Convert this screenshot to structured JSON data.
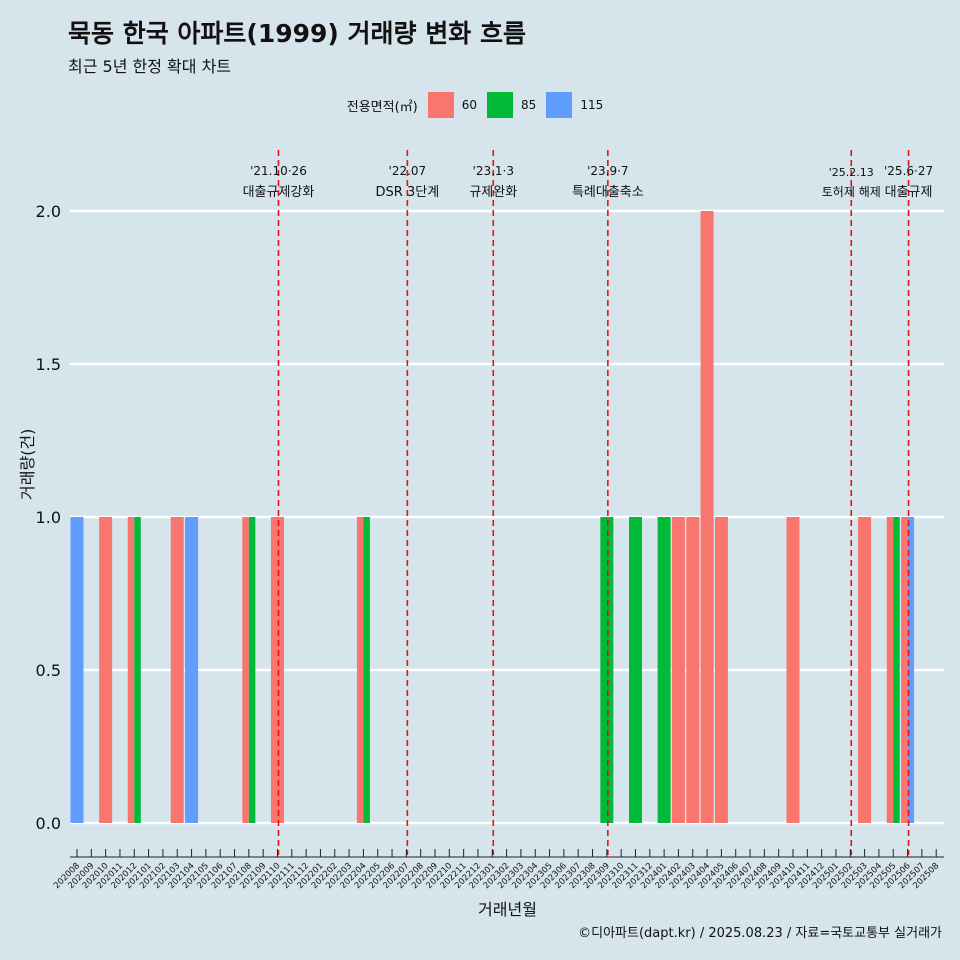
{
  "title": "묵동 한국 아파트(1999) 거래량 변화 흐름",
  "subtitle": "최근 5년 한정 확대 차트",
  "caption": "©디아파트(dapt.kr) / 2025.08.23 / 자료=국토교통부 실거래가",
  "legend": {
    "title": "전용면적(㎡)",
    "items": [
      {
        "label": "60",
        "color": "#f8766d"
      },
      {
        "label": "85",
        "color": "#00ba38"
      },
      {
        "label": "115",
        "color": "#619cff"
      }
    ]
  },
  "chart_data": {
    "type": "bar",
    "xlabel": "거래년월",
    "ylabel": "거래량(건)",
    "ylim": [
      0,
      2
    ],
    "yticks": [
      "0.0",
      "0.5",
      "1.0",
      "1.5",
      "2.0"
    ],
    "categories": [
      "202008",
      "202009",
      "202010",
      "202011",
      "202012",
      "202101",
      "202102",
      "202103",
      "202104",
      "202105",
      "202106",
      "202107",
      "202108",
      "202109",
      "202110",
      "202111",
      "202112",
      "202201",
      "202202",
      "202203",
      "202204",
      "202205",
      "202206",
      "202207",
      "202208",
      "202209",
      "202210",
      "202211",
      "202212",
      "202301",
      "202302",
      "202303",
      "202304",
      "202305",
      "202306",
      "202307",
      "202308",
      "202309",
      "202310",
      "202311",
      "202312",
      "202401",
      "202402",
      "202403",
      "202404",
      "202405",
      "202406",
      "202407",
      "202408",
      "202409",
      "202410",
      "202411",
      "202412",
      "202501",
      "202502",
      "202503",
      "202504",
      "202505",
      "202506",
      "202507",
      "202508"
    ],
    "series": [
      {
        "name": "60",
        "color": "#f8766d",
        "values": [
          0,
          0,
          1,
          0,
          1,
          0,
          0,
          1,
          0,
          0,
          0,
          0,
          1,
          0,
          1,
          0,
          0,
          0,
          0,
          0,
          1,
          0,
          0,
          0,
          0,
          0,
          0,
          0,
          0,
          0,
          0,
          0,
          0,
          0,
          0,
          0,
          0,
          0,
          0,
          0,
          0,
          0,
          1,
          1,
          2,
          1,
          0,
          0,
          0,
          0,
          1,
          0,
          0,
          0,
          0,
          1,
          0,
          1,
          1,
          0,
          0
        ]
      },
      {
        "name": "85",
        "color": "#00ba38",
        "values": [
          0,
          0,
          0,
          0,
          1,
          0,
          0,
          0,
          0,
          0,
          0,
          0,
          1,
          0,
          0,
          0,
          0,
          0,
          0,
          0,
          1,
          0,
          0,
          0,
          0,
          0,
          0,
          0,
          0,
          0,
          0,
          0,
          0,
          0,
          0,
          0,
          0,
          1,
          0,
          1,
          0,
          1,
          0,
          0,
          0,
          0,
          0,
          0,
          0,
          0,
          0,
          0,
          0,
          0,
          0,
          0,
          0,
          1,
          0,
          0,
          0
        ]
      },
      {
        "name": "115",
        "color": "#619cff",
        "values": [
          1,
          0,
          0,
          0,
          0,
          0,
          0,
          0,
          1,
          0,
          0,
          0,
          0,
          0,
          0,
          0,
          0,
          0,
          0,
          0,
          0,
          0,
          0,
          0,
          0,
          0,
          0,
          0,
          0,
          0,
          0,
          0,
          0,
          0,
          0,
          0,
          0,
          0,
          0,
          0,
          0,
          0,
          0,
          0,
          0,
          0,
          0,
          0,
          0,
          0,
          0,
          0,
          0,
          0,
          0,
          0,
          0,
          0,
          1,
          0,
          0
        ]
      }
    ],
    "events": [
      {
        "label1": "'21.10·26",
        "label2": "대출규제강화",
        "x": "202110"
      },
      {
        "label1": "'22.07",
        "label2": "DSR 3단계",
        "x": "202207"
      },
      {
        "label1": "'23.1·3",
        "label2": "규제완화",
        "x": "202301"
      },
      {
        "label1": "'23.9·7",
        "label2": "특례대출축소",
        "x": "202309"
      },
      {
        "label1": "'25.2.13",
        "label2": "토허제 해제",
        "x": "202502"
      },
      {
        "label1": "'25.6·27",
        "label2": "대출규제",
        "x": "202506"
      }
    ]
  }
}
